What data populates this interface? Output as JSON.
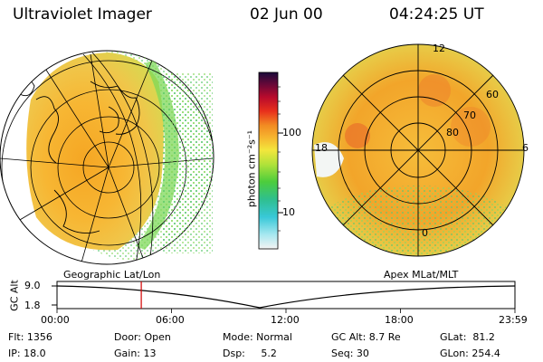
{
  "header": {
    "instrument": "Ultraviolet Imager",
    "date": "02 Jun 00",
    "time": "04:24:25 UT"
  },
  "colorbar": {
    "unit_label": "photon cm⁻²s⁻¹",
    "ticks": [
      "100",
      "10"
    ]
  },
  "left_panel": {
    "caption": "Geographic Lat/Lon"
  },
  "right_panel": {
    "caption": "Apex MLat/MLT",
    "mlt_labels": [
      "12",
      "18",
      "6",
      "0"
    ],
    "lat_labels": [
      "60",
      "70",
      "80"
    ]
  },
  "altitude_plot": {
    "ylabel": "GC Alt",
    "ticks": [
      "9.0",
      "1.8"
    ],
    "time_ticks": [
      "00:00",
      "06:00",
      "12:00",
      "18:00",
      "23:59"
    ],
    "current_time_fraction": 0.184,
    "marker_color": "#d40000"
  },
  "info": {
    "flt": "Flt: 1356",
    "ip": "IP: 18.0",
    "door": "Door: Open",
    "gain": "Gain: 13",
    "mode": "Mode: Normal",
    "dsp": "Dsp:     5.2",
    "gc_alt": "GC Alt: 8.7 Re",
    "seq": "Seq: 30",
    "glat": "GLat:  81.2",
    "glon": "GLon: 254.4"
  }
}
